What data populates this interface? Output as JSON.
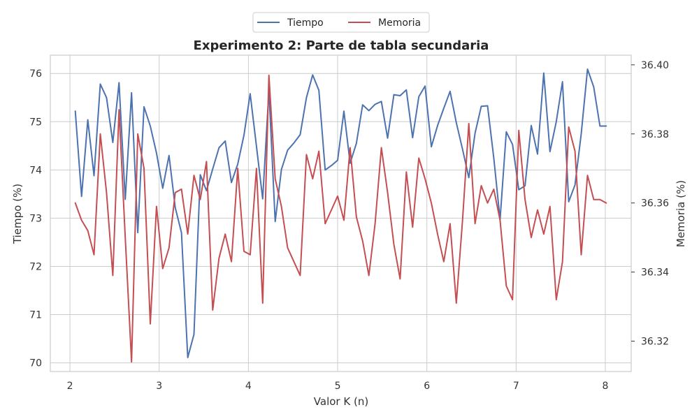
{
  "chart_data": {
    "type": "line",
    "title": "Experimento 2: Parte de tabla secundaria",
    "xlabel": "Valor K (n)",
    "ylabel": "Tiempo (%)",
    "y2label": "Memoria (%)",
    "xlim": [
      1.78,
      8.29
    ],
    "ylim": [
      69.82,
      76.38
    ],
    "y2lim": [
      36.3112,
      36.4028
    ],
    "xticks": [
      2,
      3,
      4,
      5,
      6,
      7,
      8
    ],
    "yticks": [
      70,
      71,
      72,
      73,
      74,
      75,
      76
    ],
    "y2ticks": [
      36.32,
      36.34,
      36.36,
      36.38,
      36.4
    ],
    "y2tick_labels": [
      "36.32",
      "36.34",
      "36.36",
      "36.38",
      "36.40"
    ],
    "grid": true,
    "legend_position": "top-center",
    "x": [
      2.06,
      2.13,
      2.2,
      2.27,
      2.34,
      2.41,
      2.48,
      2.55,
      2.62,
      2.69,
      2.76,
      2.83,
      2.9,
      2.97,
      3.04,
      3.11,
      3.18,
      3.25,
      3.32,
      3.39,
      3.46,
      3.53,
      3.6,
      3.67,
      3.74,
      3.81,
      3.88,
      3.95,
      4.02,
      4.09,
      4.16,
      4.23,
      4.3,
      4.37,
      4.44,
      4.51,
      4.58,
      4.65,
      4.72,
      4.79,
      4.86,
      4.93,
      5.0,
      5.07,
      5.14,
      5.21,
      5.28,
      5.35,
      5.42,
      5.49,
      5.56,
      5.63,
      5.7,
      5.77,
      5.84,
      5.91,
      5.98,
      6.05,
      6.12,
      6.19,
      6.26,
      6.33,
      6.4,
      6.47,
      6.54,
      6.61,
      6.68,
      6.75,
      6.82,
      6.89,
      6.96,
      7.03,
      7.1,
      7.17,
      7.24,
      7.31,
      7.38,
      7.45,
      7.52,
      7.59,
      7.66,
      7.73,
      7.8,
      7.87,
      7.94,
      8.01
    ],
    "series": [
      {
        "name": "Tiempo",
        "color": "#4c72b0",
        "axis": "left",
        "values": [
          75.22,
          73.45,
          75.04,
          73.88,
          75.78,
          75.5,
          74.57,
          75.81,
          73.39,
          75.6,
          72.7,
          75.31,
          74.91,
          74.35,
          73.62,
          74.3,
          73.22,
          72.7,
          70.11,
          70.59,
          73.9,
          73.57,
          74.02,
          74.46,
          74.6,
          73.74,
          74.12,
          74.72,
          75.58,
          74.49,
          73.4,
          75.65,
          72.93,
          74.01,
          74.41,
          74.56,
          74.73,
          75.5,
          75.97,
          75.65,
          74.0,
          74.09,
          74.2,
          75.22,
          74.14,
          74.55,
          75.35,
          75.23,
          75.36,
          75.42,
          74.66,
          75.56,
          75.54,
          75.66,
          74.67,
          75.52,
          75.74,
          74.48,
          74.92,
          75.28,
          75.63,
          74.98,
          74.43,
          73.84,
          74.76,
          75.32,
          75.33,
          74.25,
          72.97,
          74.79,
          74.53,
          73.59,
          73.67,
          74.92,
          74.33,
          76.01,
          74.38,
          75.0,
          75.83,
          73.34,
          73.69,
          74.75,
          76.09,
          75.72,
          74.91,
          74.91
        ]
      },
      {
        "name": "Memoria",
        "color": "#c44e52",
        "axis": "right",
        "values": [
          36.36,
          36.355,
          36.352,
          36.345,
          36.38,
          36.363,
          36.339,
          36.387,
          36.35,
          36.314,
          36.38,
          36.37,
          36.325,
          36.359,
          36.341,
          36.347,
          36.363,
          36.364,
          36.351,
          36.368,
          36.361,
          36.372,
          36.329,
          36.344,
          36.351,
          36.343,
          36.37,
          36.346,
          36.345,
          36.37,
          36.331,
          36.397,
          36.367,
          36.359,
          36.347,
          36.343,
          36.339,
          36.374,
          36.367,
          36.375,
          36.354,
          36.358,
          36.362,
          36.355,
          36.376,
          36.356,
          36.349,
          36.339,
          36.354,
          36.376,
          36.363,
          36.348,
          36.338,
          36.369,
          36.353,
          36.373,
          36.367,
          36.36,
          36.351,
          36.343,
          36.354,
          36.331,
          36.355,
          36.383,
          36.354,
          36.365,
          36.36,
          36.364,
          36.355,
          36.336,
          36.332,
          36.381,
          36.361,
          36.35,
          36.358,
          36.351,
          36.359,
          36.332,
          36.343,
          36.382,
          36.375,
          36.345,
          36.368,
          36.361,
          36.361,
          36.36
        ]
      }
    ]
  }
}
